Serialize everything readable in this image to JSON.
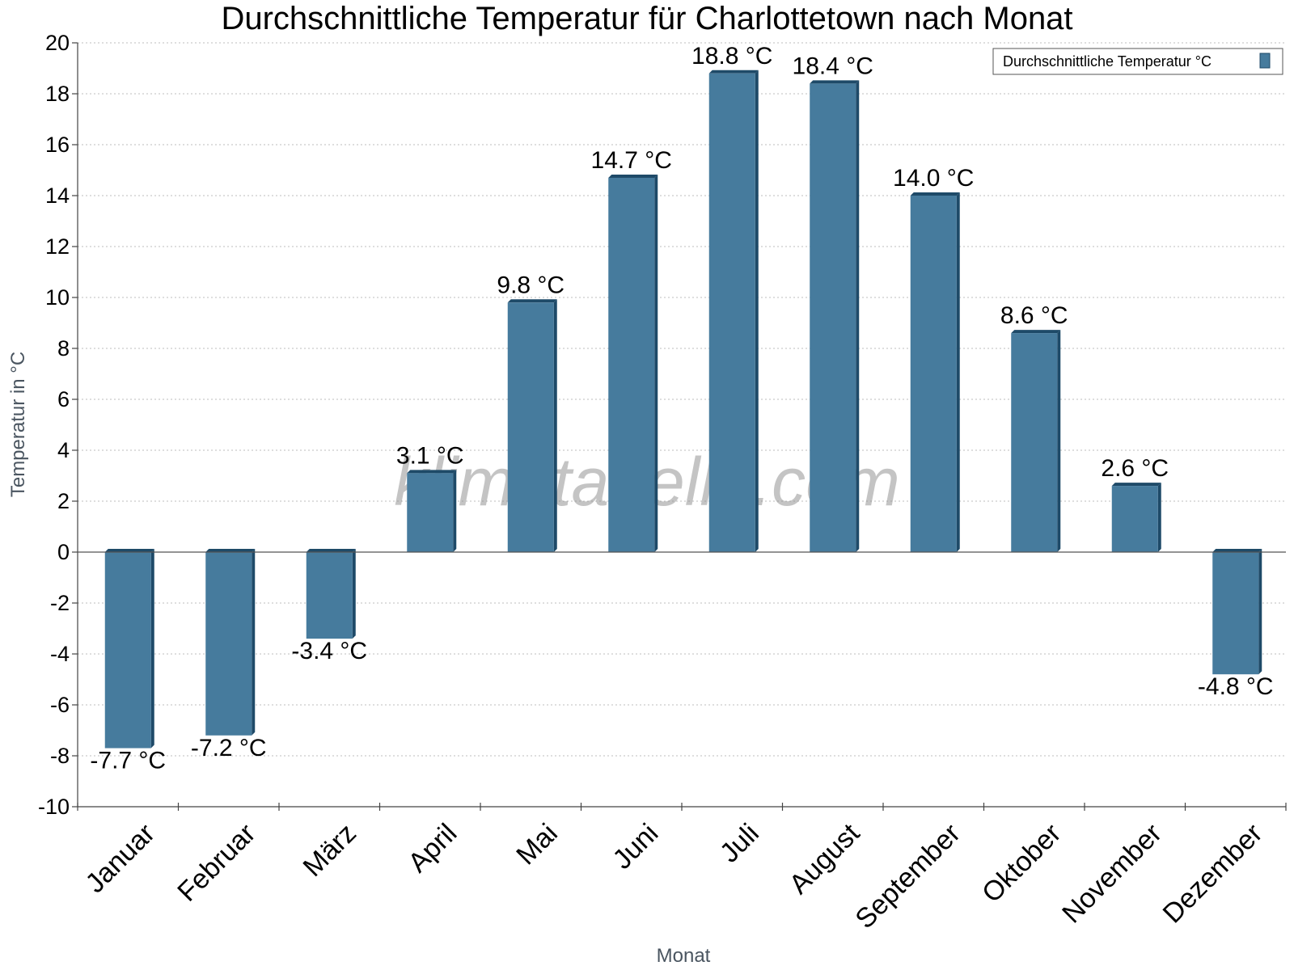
{
  "chart_data": {
    "type": "bar",
    "title": "Durchschnittliche Temperatur für Charlottetown nach Monat",
    "xlabel": "Monat",
    "ylabel": "Temperatur in °C",
    "ylim": [
      -10,
      20
    ],
    "yticks": [
      -10,
      -8,
      -6,
      -4,
      -2,
      0,
      2,
      4,
      6,
      8,
      10,
      12,
      14,
      16,
      18,
      20
    ],
    "grid": true,
    "legend_position": "top-right",
    "categories": [
      "Januar",
      "Februar",
      "März",
      "April",
      "Mai",
      "Juni",
      "Juli",
      "August",
      "September",
      "Oktober",
      "November",
      "Dezember"
    ],
    "series": [
      {
        "name": "Durchschnittliche Temperatur °C",
        "values": [
          -7.7,
          -7.2,
          -3.4,
          3.1,
          9.8,
          14.7,
          18.8,
          18.4,
          14.0,
          8.6,
          2.6,
          -4.8
        ],
        "data_labels": [
          "-7.7 °C",
          "-7.2 °C",
          "-3.4 °C",
          "3.1 °C",
          "9.8 °C",
          "14.7 °C",
          "18.8 °C",
          "18.4 °C",
          "14.0 °C",
          "8.6 °C",
          "2.6 °C",
          "-4.8 °C"
        ],
        "color": "#467b9d",
        "side_color": "#1e4a68"
      }
    ],
    "watermark": "klimatabelle.com"
  }
}
